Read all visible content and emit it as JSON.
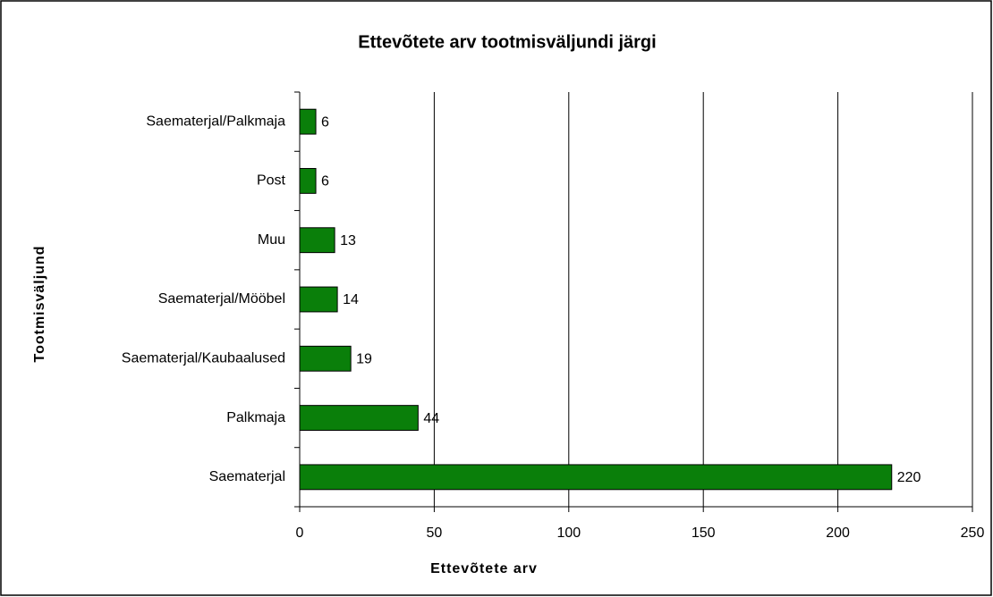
{
  "chart_data": {
    "type": "bar",
    "orientation": "horizontal",
    "title": "Ettevõtete arv tootmisväljundi järgi",
    "x_label": "Ettevõtete arv",
    "y_label": "Tootmisväljund",
    "categories": [
      "Saematerjal/Palkmaja",
      "Post",
      "Muu",
      "Saematerjal/Mööbel",
      "Saematerjal/Kaubaalused",
      "Palkmaja",
      "Saematerjal"
    ],
    "values": [
      6,
      6,
      13,
      14,
      19,
      44,
      220
    ],
    "color": "#0a7f0a",
    "xlim": [
      0,
      250
    ],
    "xticks": [
      0,
      50,
      100,
      150,
      200,
      250
    ],
    "grid": true
  }
}
